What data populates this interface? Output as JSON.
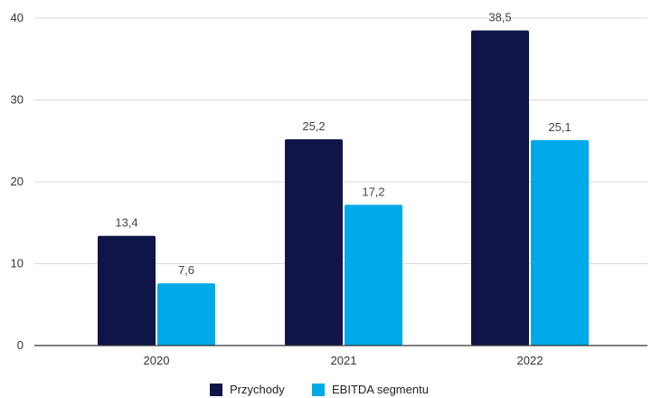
{
  "chart_data": {
    "type": "bar",
    "title": "",
    "xlabel": "",
    "ylabel": "",
    "categories": [
      "2020",
      "2021",
      "2022"
    ],
    "series": [
      {
        "name": "Przychody",
        "color": "#0f1547",
        "values": [
          13.4,
          25.2,
          38.5
        ],
        "labels": [
          "13,4",
          "25,2",
          "38,5"
        ]
      },
      {
        "name": "EBITDA segmentu",
        "color": "#00a9e8",
        "values": [
          7.6,
          17.2,
          25.1
        ],
        "labels": [
          "7,6",
          "17,2",
          "25,1"
        ]
      }
    ],
    "ylim": [
      0,
      40
    ],
    "yticks": [
      "0",
      "10",
      "20",
      "30",
      "40"
    ],
    "ytick_values": [
      0,
      10,
      20,
      30,
      40
    ],
    "grid": true,
    "legend": "bottom"
  }
}
